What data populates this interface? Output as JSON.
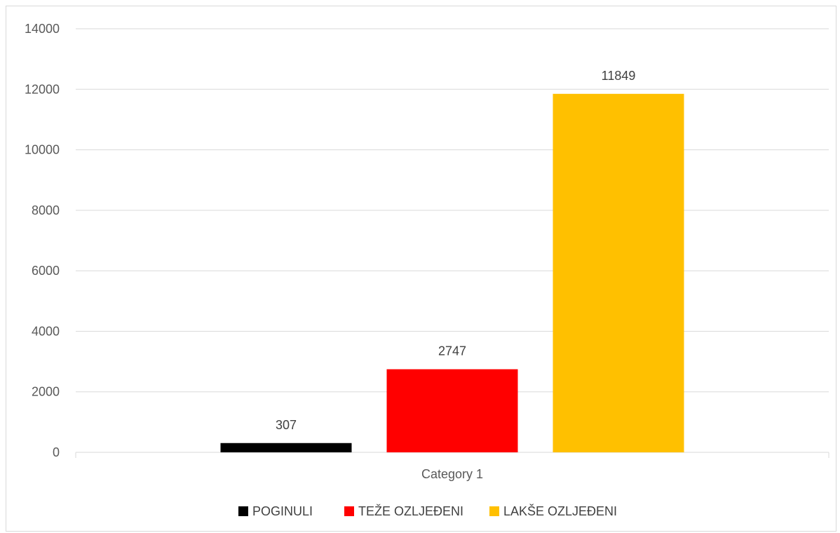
{
  "chart_data": {
    "type": "bar",
    "categories": [
      "Category 1"
    ],
    "series": [
      {
        "name": "POGINULI",
        "values": [
          307
        ],
        "color": "#000000"
      },
      {
        "name": "TEŽE OZLJEĐENI",
        "values": [
          2747
        ],
        "color": "#ff0000"
      },
      {
        "name": "LAKŠE OZLJEĐENI",
        "values": [
          11849
        ],
        "color": "#ffc000"
      }
    ],
    "title": "",
    "xlabel": "",
    "ylabel": "",
    "ylim": [
      0,
      14000
    ],
    "yticks": [
      0,
      2000,
      4000,
      6000,
      8000,
      10000,
      12000,
      14000
    ],
    "grid": true,
    "legend_position": "bottom",
    "data_labels": true
  }
}
